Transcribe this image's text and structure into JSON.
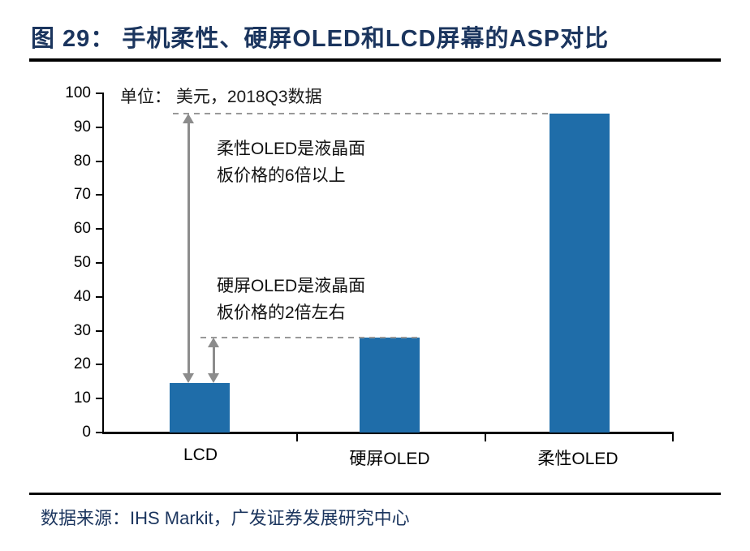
{
  "figure": {
    "title": "图 29： 手机柔性、硬屏OLED和LCD屏幕的ASP对比",
    "source": "数据来源：IHS Markit，广发证券发展研究中心"
  },
  "chart_data": {
    "type": "bar",
    "title": "手机柔性、硬屏OLED和LCD屏幕的ASP对比",
    "unit_note": "单位： 美元，2018Q3数据",
    "categories": [
      "LCD",
      "硬屏OLED",
      "柔性OLED"
    ],
    "values": [
      14.5,
      28,
      94
    ],
    "ylim": [
      0,
      100
    ],
    "yticks": [
      0,
      10,
      20,
      30,
      40,
      50,
      60,
      70,
      80,
      90,
      100
    ],
    "xlabel": "",
    "ylabel": "",
    "grid": false,
    "legend": false,
    "bar_color": "#1F6DA9",
    "guide_color": "#8C8C8C",
    "annotations": [
      {
        "target": "柔性OLED",
        "lines": [
          "柔性OLED是液晶面",
          "板价格的6倍以上"
        ]
      },
      {
        "target": "硬屏OLED",
        "lines": [
          "硬屏OLED是液晶面",
          "板价格的2倍左右"
        ]
      }
    ]
  }
}
